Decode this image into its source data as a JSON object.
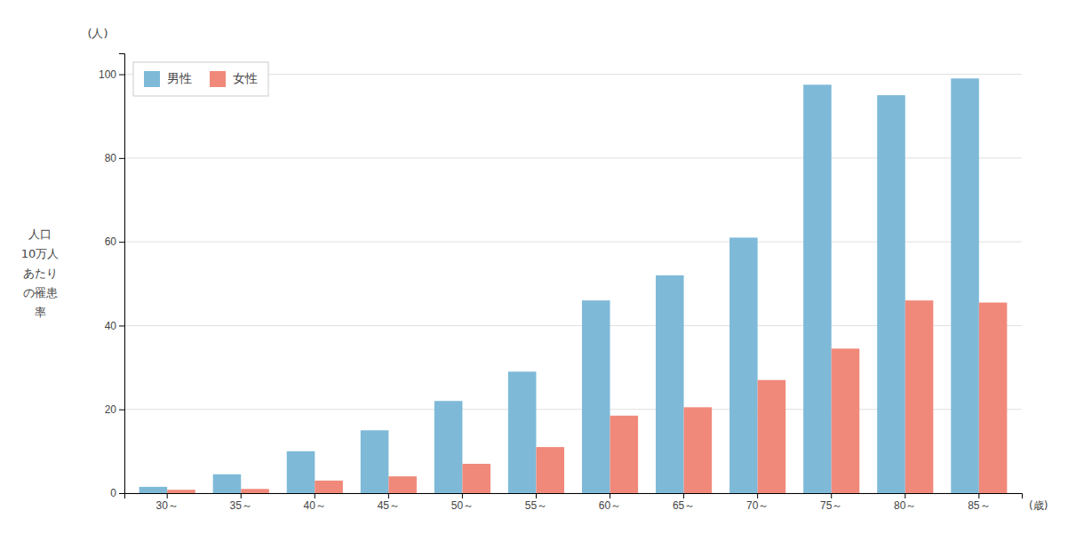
{
  "chart_data": {
    "type": "bar",
    "categories": [
      "30～",
      "35～",
      "40～",
      "45～",
      "50～",
      "55～",
      "60～",
      "65～",
      "70～",
      "75～",
      "80～",
      "85～"
    ],
    "series": [
      {
        "name": "男性",
        "color": "#7EB9D8",
        "values": [
          1.5,
          4.5,
          10.0,
          15.0,
          22.0,
          29.0,
          46.0,
          52.0,
          61.0,
          97.5,
          95.0,
          99.0
        ]
      },
      {
        "name": "女性",
        "color": "#F0897A",
        "values": [
          0.8,
          1.0,
          3.0,
          4.0,
          7.0,
          11.0,
          18.5,
          20.5,
          27.0,
          34.5,
          46.0,
          45.5
        ]
      }
    ],
    "xlabel": "(歳)",
    "ylabel": "人口\n10万人\nあたり\nの罹患\n率",
    "annotations": [
      "(人)"
    ],
    "ylim": [
      0,
      105
    ],
    "yticks": [
      0,
      20,
      40,
      60,
      80,
      100
    ],
    "grid": true,
    "legend": "upper left"
  }
}
